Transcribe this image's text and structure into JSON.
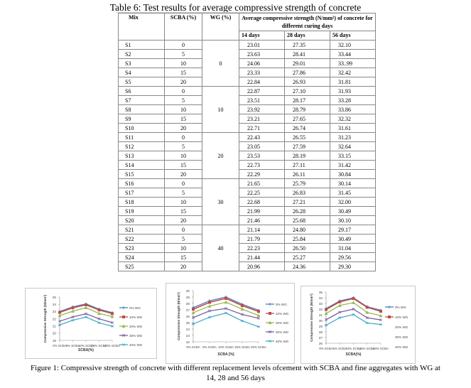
{
  "table": {
    "title": "Table 6: Test results for average compressive strength of concrete",
    "headers": {
      "mix": "Mix",
      "scba": "SCBA (%)",
      "wg": "WG (%)",
      "strength_group": "Average compressive strength (N/mm²) of concrete for different curing days",
      "days": [
        "14 days",
        "28 days",
        "56 days"
      ]
    },
    "groups": [
      {
        "wg": "0",
        "rows": [
          {
            "mix": "S1",
            "scba": "0",
            "d14": "23.01",
            "d28": "27.35",
            "d56": "32.10"
          },
          {
            "mix": "S2",
            "scba": "5",
            "d14": "23.63",
            "d28": "28.41",
            "d56": "33.44"
          },
          {
            "mix": "S3",
            "scba": "10",
            "d14": "24.06",
            "d28": "29.01",
            "d56": "33..99"
          },
          {
            "mix": "S4",
            "scba": "15",
            "d14": "23.33",
            "d28": "27.86",
            "d56": "32.42"
          },
          {
            "mix": "S5",
            "scba": "20",
            "d14": "22.84",
            "d28": "26.93",
            "d56": "31.81"
          }
        ]
      },
      {
        "wg": "10",
        "rows": [
          {
            "mix": "S6",
            "scba": "0",
            "d14": "22.87",
            "d28": "27.10",
            "d56": "31.93"
          },
          {
            "mix": "S7",
            "scba": "5",
            "d14": "23.51",
            "d28": "28.17",
            "d56": "33.28"
          },
          {
            "mix": "S8",
            "scba": "10",
            "d14": "23.92",
            "d28": "28.79",
            "d56": "33.86"
          },
          {
            "mix": "S9",
            "scba": "15",
            "d14": "23.21",
            "d28": "27.65",
            "d56": "32.32"
          },
          {
            "mix": "S10",
            "scba": "20",
            "d14": "22.71",
            "d28": "26.74",
            "d56": "31.61"
          }
        ]
      },
      {
        "wg": "20",
        "rows": [
          {
            "mix": "S11",
            "scba": "0",
            "d14": "22.43",
            "d28": "26.55",
            "d56": "31.23"
          },
          {
            "mix": "S12",
            "scba": "5",
            "d14": "23.05",
            "d28": "27.59",
            "d56": "32.64"
          },
          {
            "mix": "S13",
            "scba": "10",
            "d14": "23.53",
            "d28": "28.19",
            "d56": "33.15"
          },
          {
            "mix": "S14",
            "scba": "15",
            "d14": "22.73",
            "d28": "27.11",
            "d56": "31.42"
          },
          {
            "mix": "S15",
            "scba": "20",
            "d14": "22.29",
            "d28": "26.11",
            "d56": "30.84"
          }
        ]
      },
      {
        "wg": "30",
        "rows": [
          {
            "mix": "S16",
            "scba": "0",
            "d14": "21.65",
            "d28": "25.79",
            "d56": "30.14"
          },
          {
            "mix": "S17",
            "scba": "5",
            "d14": "22.25",
            "d28": "26.83",
            "d56": "31.45"
          },
          {
            "mix": "S18",
            "scba": "10",
            "d14": "22.68",
            "d28": "27.21",
            "d56": "32.00"
          },
          {
            "mix": "S19",
            "scba": "15",
            "d14": "21.99",
            "d28": "26.28",
            "d56": "30.49"
          },
          {
            "mix": "S20",
            "scba": "20",
            "d14": "21.46",
            "d28": "25.68",
            "d56": "30.10"
          }
        ]
      },
      {
        "wg": "40",
        "rows": [
          {
            "mix": "S21",
            "scba": "0",
            "d14": "21.14",
            "d28": "24.80",
            "d56": "29.17"
          },
          {
            "mix": "S22",
            "scba": "5",
            "d14": "21.79",
            "d28": "25.84",
            "d56": "30.49"
          },
          {
            "mix": "S23",
            "scba": "10",
            "d14": "22.23",
            "d28": "26.50",
            "d56": "31.04"
          },
          {
            "mix": "S24",
            "scba": "15",
            "d14": "21.44",
            "d28": "25.27",
            "d56": "29.56"
          },
          {
            "mix": "S25",
            "scba": "20",
            "d14": "20.96",
            "d28": "24.36",
            "d56": "29.30"
          }
        ]
      }
    ]
  },
  "chart_data": [
    {
      "type": "line",
      "title": "",
      "xlabel": "SCBA(%)",
      "ylabel": "Compressive Strength (N/mm²)",
      "categories": [
        "0% SCBA",
        "5% SCBA",
        "10% SCBA",
        "15% SCBA",
        "20% SCBA"
      ],
      "ylim": [
        19,
        25
      ],
      "yticks": [
        "19",
        "20",
        "21",
        "22",
        "23",
        "24",
        "25"
      ],
      "legend_position": "right",
      "series": [
        {
          "name": "0% WG",
          "color": "#4a7ebb",
          "marker": "plus",
          "values": [
            23.01,
            23.63,
            24.06,
            23.33,
            22.84
          ]
        },
        {
          "name": "10% WG",
          "color": "#be4b48",
          "marker": "square",
          "values": [
            22.87,
            23.51,
            23.92,
            23.21,
            22.71
          ]
        },
        {
          "name": "20% WG",
          "color": "#98b954",
          "marker": "triangle",
          "values": [
            22.43,
            23.05,
            23.53,
            22.73,
            22.29
          ]
        },
        {
          "name": "30% WG",
          "color": "#7d60a0",
          "marker": "x",
          "values": [
            21.65,
            22.25,
            22.68,
            21.99,
            21.46
          ]
        },
        {
          "name": "40% WG",
          "color": "#46aac5",
          "marker": "star",
          "values": [
            21.14,
            21.79,
            22.23,
            21.44,
            20.96
          ]
        }
      ]
    },
    {
      "type": "line",
      "title": "",
      "xlabel": "SCBA [%]",
      "ylabel": "Compressive Strength (N/mm²)",
      "categories": [
        "0% SCBA",
        "5% SCBA",
        "10% SCBA",
        "15% SCBA",
        "20% SCBA"
      ],
      "ylim": [
        22,
        30
      ],
      "yticks": [
        "22",
        "23",
        "24",
        "25",
        "26",
        "27",
        "28",
        "29",
        "30"
      ],
      "legend_position": "right",
      "series": [
        {
          "name": "0% WG",
          "color": "#4a7ebb",
          "marker": "plus",
          "values": [
            27.35,
            28.41,
            29.01,
            27.86,
            26.93
          ]
        },
        {
          "name": "10% WG",
          "color": "#be4b48",
          "marker": "square",
          "values": [
            27.1,
            28.17,
            28.79,
            27.65,
            26.74
          ]
        },
        {
          "name": "20% WG",
          "color": "#98b954",
          "marker": "triangle",
          "values": [
            26.55,
            27.59,
            28.19,
            27.11,
            26.11
          ]
        },
        {
          "name": "30% WG",
          "color": "#7d60a0",
          "marker": "x",
          "values": [
            25.79,
            26.83,
            27.21,
            26.28,
            25.68
          ]
        },
        {
          "name": "40% WG",
          "color": "#46aac5",
          "marker": "star",
          "values": [
            24.8,
            25.84,
            26.5,
            25.27,
            24.36
          ]
        }
      ]
    },
    {
      "type": "line",
      "title": "",
      "xlabel": "SCBA(%)",
      "ylabel": "Compressive Strength (N/mm²)",
      "categories": [
        "0% SCBA",
        "5% SCBA",
        "10% SCBA",
        "15% SCBA",
        "20% SCBA"
      ],
      "ylim": [
        26,
        35
      ],
      "yticks": [
        "26",
        "27",
        "28",
        "29",
        "30",
        "31",
        "32",
        "33",
        "34",
        "35"
      ],
      "legend_position": "right",
      "series": [
        {
          "name": "0% WG",
          "color": "#4a7ebb",
          "marker": "plus",
          "legend_line": true,
          "values": [
            32.1,
            33.44,
            33.99,
            32.42,
            31.81
          ]
        },
        {
          "name": "10% WG",
          "color": "#be4b48",
          "marker": "square",
          "legend_line": true,
          "values": [
            31.93,
            33.28,
            33.86,
            32.32,
            31.61
          ]
        },
        {
          "name": "20% WG",
          "color": "#98b954",
          "marker": "triangle",
          "legend_line": false,
          "values": [
            31.23,
            32.64,
            33.15,
            31.42,
            30.84
          ]
        },
        {
          "name": "30% WG",
          "color": "#7d60a0",
          "marker": "x",
          "legend_line": false,
          "values": [
            30.14,
            31.45,
            32.0,
            30.49,
            30.1
          ]
        },
        {
          "name": "40% WG",
          "color": "#46aac5",
          "marker": "star",
          "legend_line": false,
          "values": [
            29.17,
            30.49,
            31.04,
            29.56,
            29.3
          ]
        }
      ]
    }
  ],
  "figure_caption": {
    "line1": "Figure 1: Compressive strength of concrete with different replacement levels ofcement with SCBA and fine aggregates with WG at",
    "line2": "14, 28 and 56 days"
  }
}
